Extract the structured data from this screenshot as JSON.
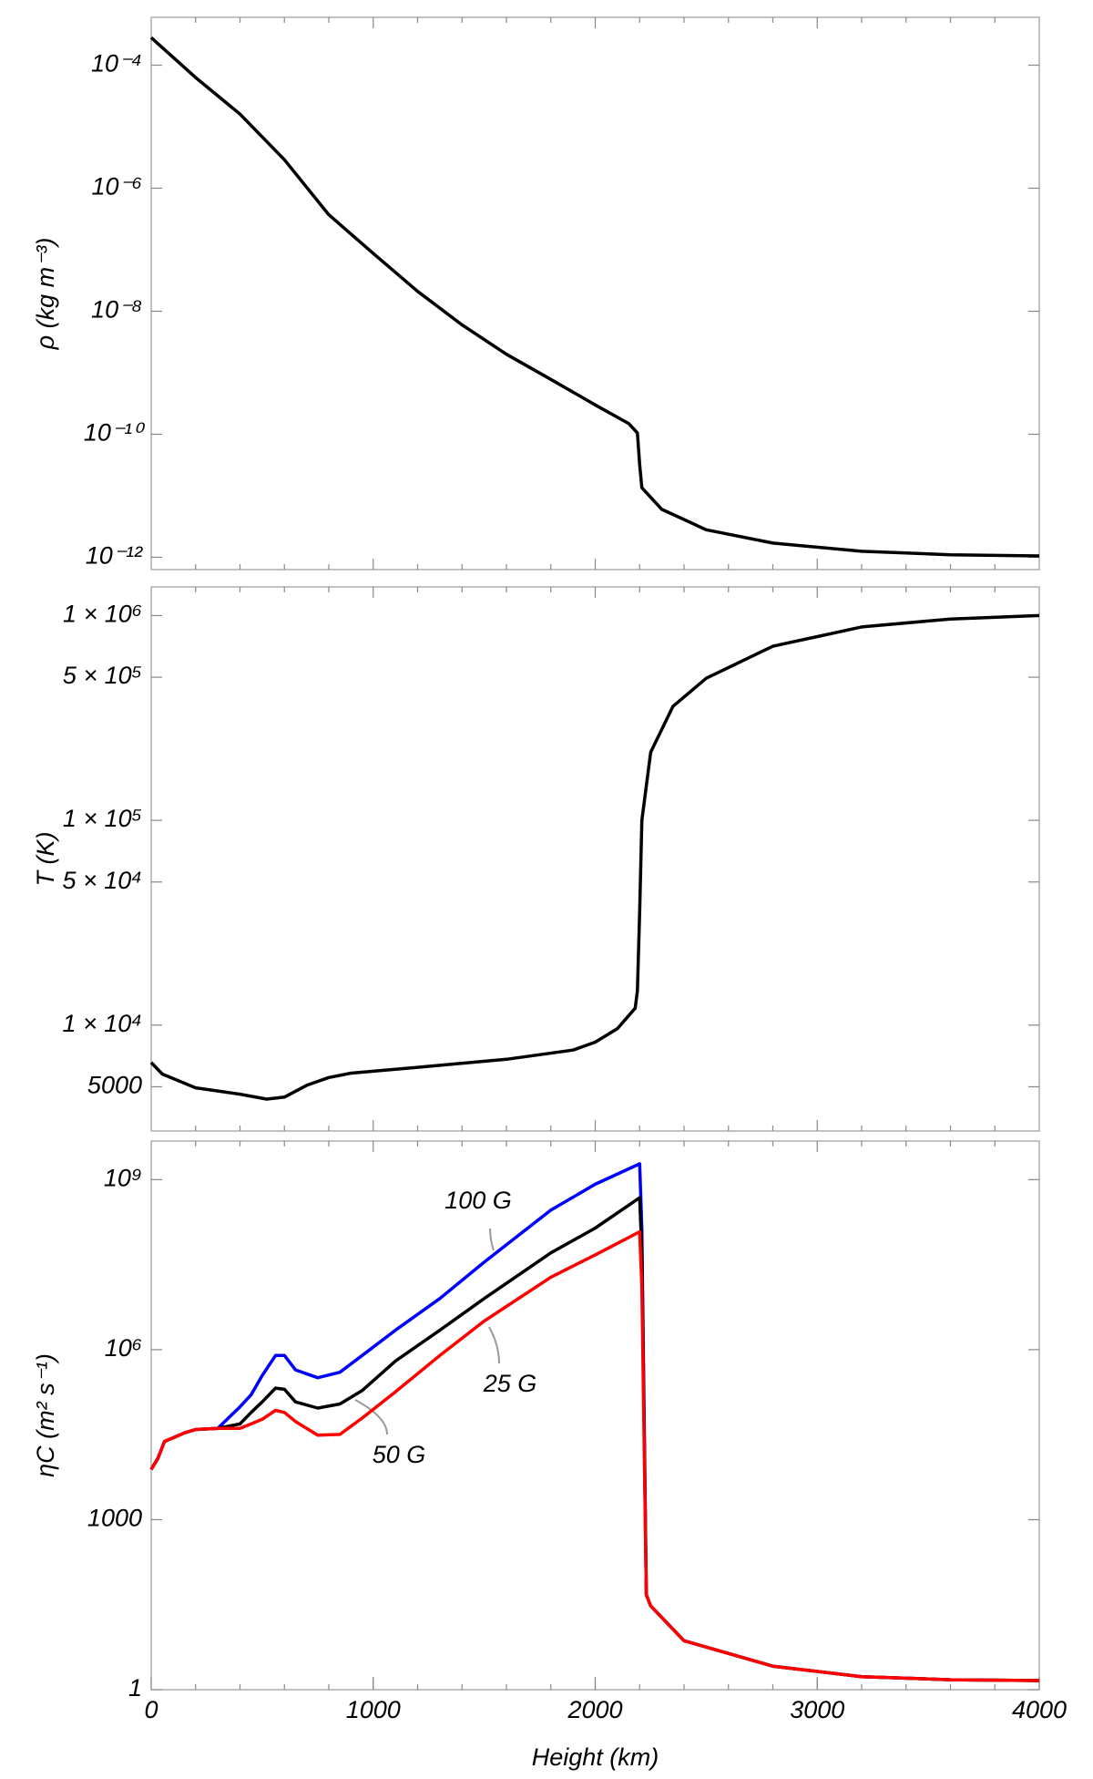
{
  "chart_data": [
    {
      "type": "line",
      "ylabel": "ρ (kg m⁻³)",
      "yscale": "log",
      "xlim": [
        0,
        4000
      ],
      "ylim": [
        6.3e-13,
        0.0006
      ],
      "yticks": [
        {
          "value": 0.0001,
          "label": "10⁻⁴"
        },
        {
          "value": 1e-06,
          "label": "10⁻⁶"
        },
        {
          "value": 1e-08,
          "label": "10⁻⁸"
        },
        {
          "value": 1e-10,
          "label": "10⁻¹⁰"
        },
        {
          "value": 1e-12,
          "label": "10⁻¹²"
        }
      ],
      "color": "#000000",
      "x": [
        0,
        200,
        400,
        600,
        800,
        1000,
        1200,
        1400,
        1600,
        1800,
        2000,
        2150,
        2190,
        2200,
        2210,
        2300,
        2500,
        2800,
        3200,
        3600,
        4000
      ],
      "values": [
        0.00028,
        6.3e-05,
        1.6e-05,
        2.9e-06,
        3.7e-07,
        8.7e-08,
        2.1e-08,
        6e-09,
        2e-09,
        7.8e-10,
        3e-10,
        1.5e-10,
        1.05e-10,
        3.2e-11,
        1.35e-11,
        6e-12,
        2.8e-12,
        1.7e-12,
        1.25e-12,
        1.1e-12,
        1.05e-12
      ]
    },
    {
      "type": "line",
      "ylabel": "T (K)",
      "yscale": "log",
      "xlim": [
        0,
        4000
      ],
      "ylim": [
        3040,
        1380000
      ],
      "yticks": [
        {
          "value": 1000000,
          "label": "1 × 10⁶"
        },
        {
          "value": 500000,
          "label": "5 × 10⁵"
        },
        {
          "value": 100000,
          "label": "1 × 10⁵"
        },
        {
          "value": 50000,
          "label": "5 × 10⁴"
        },
        {
          "value": 10000,
          "label": "1 × 10⁴"
        },
        5000
      ],
      "color": "#000000",
      "x": [
        0,
        50,
        200,
        400,
        520,
        600,
        700,
        800,
        900,
        1200,
        1600,
        1900,
        2000,
        2100,
        2180,
        2190,
        2200,
        2210,
        2250,
        2350,
        2500,
        2800,
        3200,
        3600,
        4000
      ],
      "values": [
        6560,
        5770,
        4940,
        4600,
        4350,
        4450,
        5080,
        5550,
        5830,
        6220,
        6810,
        7550,
        8260,
        9620,
        12100,
        14700,
        36000,
        100000,
        215000,
        360000,
        494000,
        708000,
        880000,
        962000,
        1000000
      ]
    },
    {
      "type": "line",
      "ylabel": "ηC (m² s⁻¹)",
      "xlabel": "Height (km)",
      "yscale": "log",
      "xlim": [
        0,
        4000
      ],
      "ylim": [
        1,
        4800000000.0
      ],
      "xticks": [
        0,
        1000,
        2000,
        3000,
        4000
      ],
      "yticks": [
        {
          "value": 1000000000.0,
          "label": "10⁹"
        },
        {
          "value": 1000000.0,
          "label": "10⁶"
        },
        1000,
        1
      ],
      "x": [
        0,
        30,
        60,
        100,
        150,
        200,
        300,
        400,
        450,
        500,
        560,
        600,
        650,
        750,
        850,
        950,
        1100,
        1300,
        1500,
        1800,
        2000,
        2200,
        2210,
        2230,
        2250,
        2400,
        2800,
        3200,
        3600,
        4000
      ],
      "series": [
        {
          "name": "100 G",
          "color": "#0000ff",
          "values": [
            7700,
            12000,
            24000,
            28000,
            34000,
            39000,
            41000,
            98000,
            160000,
            350000,
            790000,
            790000,
            440000,
            320000,
            400000,
            790000,
            2200000,
            8000000,
            35000000,
            290000000,
            830000000,
            1900000000,
            130000000,
            47,
            30,
            7.3,
            2.6,
            1.7,
            1.5,
            1.45
          ]
        },
        {
          "name": "50 G",
          "color": "#000000",
          "values": [
            7700,
            12000,
            24000,
            28000,
            34000,
            39000,
            41000,
            49000,
            78000,
            120000,
            210000,
            200000,
            120000,
            93000,
            110000,
            190000,
            630000,
            2200000,
            8000000,
            51000000,
            140000000,
            480000000,
            51000000,
            47,
            30,
            7.3,
            2.6,
            1.7,
            1.5,
            1.45
          ]
        },
        {
          "name": "25 G",
          "color": "#ff0000",
          "values": [
            7700,
            12000,
            24000,
            28000,
            34000,
            39000,
            41000,
            41000,
            49000,
            59000,
            85000,
            78000,
            54000,
            31000,
            32000,
            62000,
            180000,
            790000,
            3200000,
            19000000,
            47000000,
            120000000,
            13000000,
            47,
            30,
            7.3,
            2.6,
            1.7,
            1.5,
            1.45
          ]
        }
      ]
    }
  ]
}
